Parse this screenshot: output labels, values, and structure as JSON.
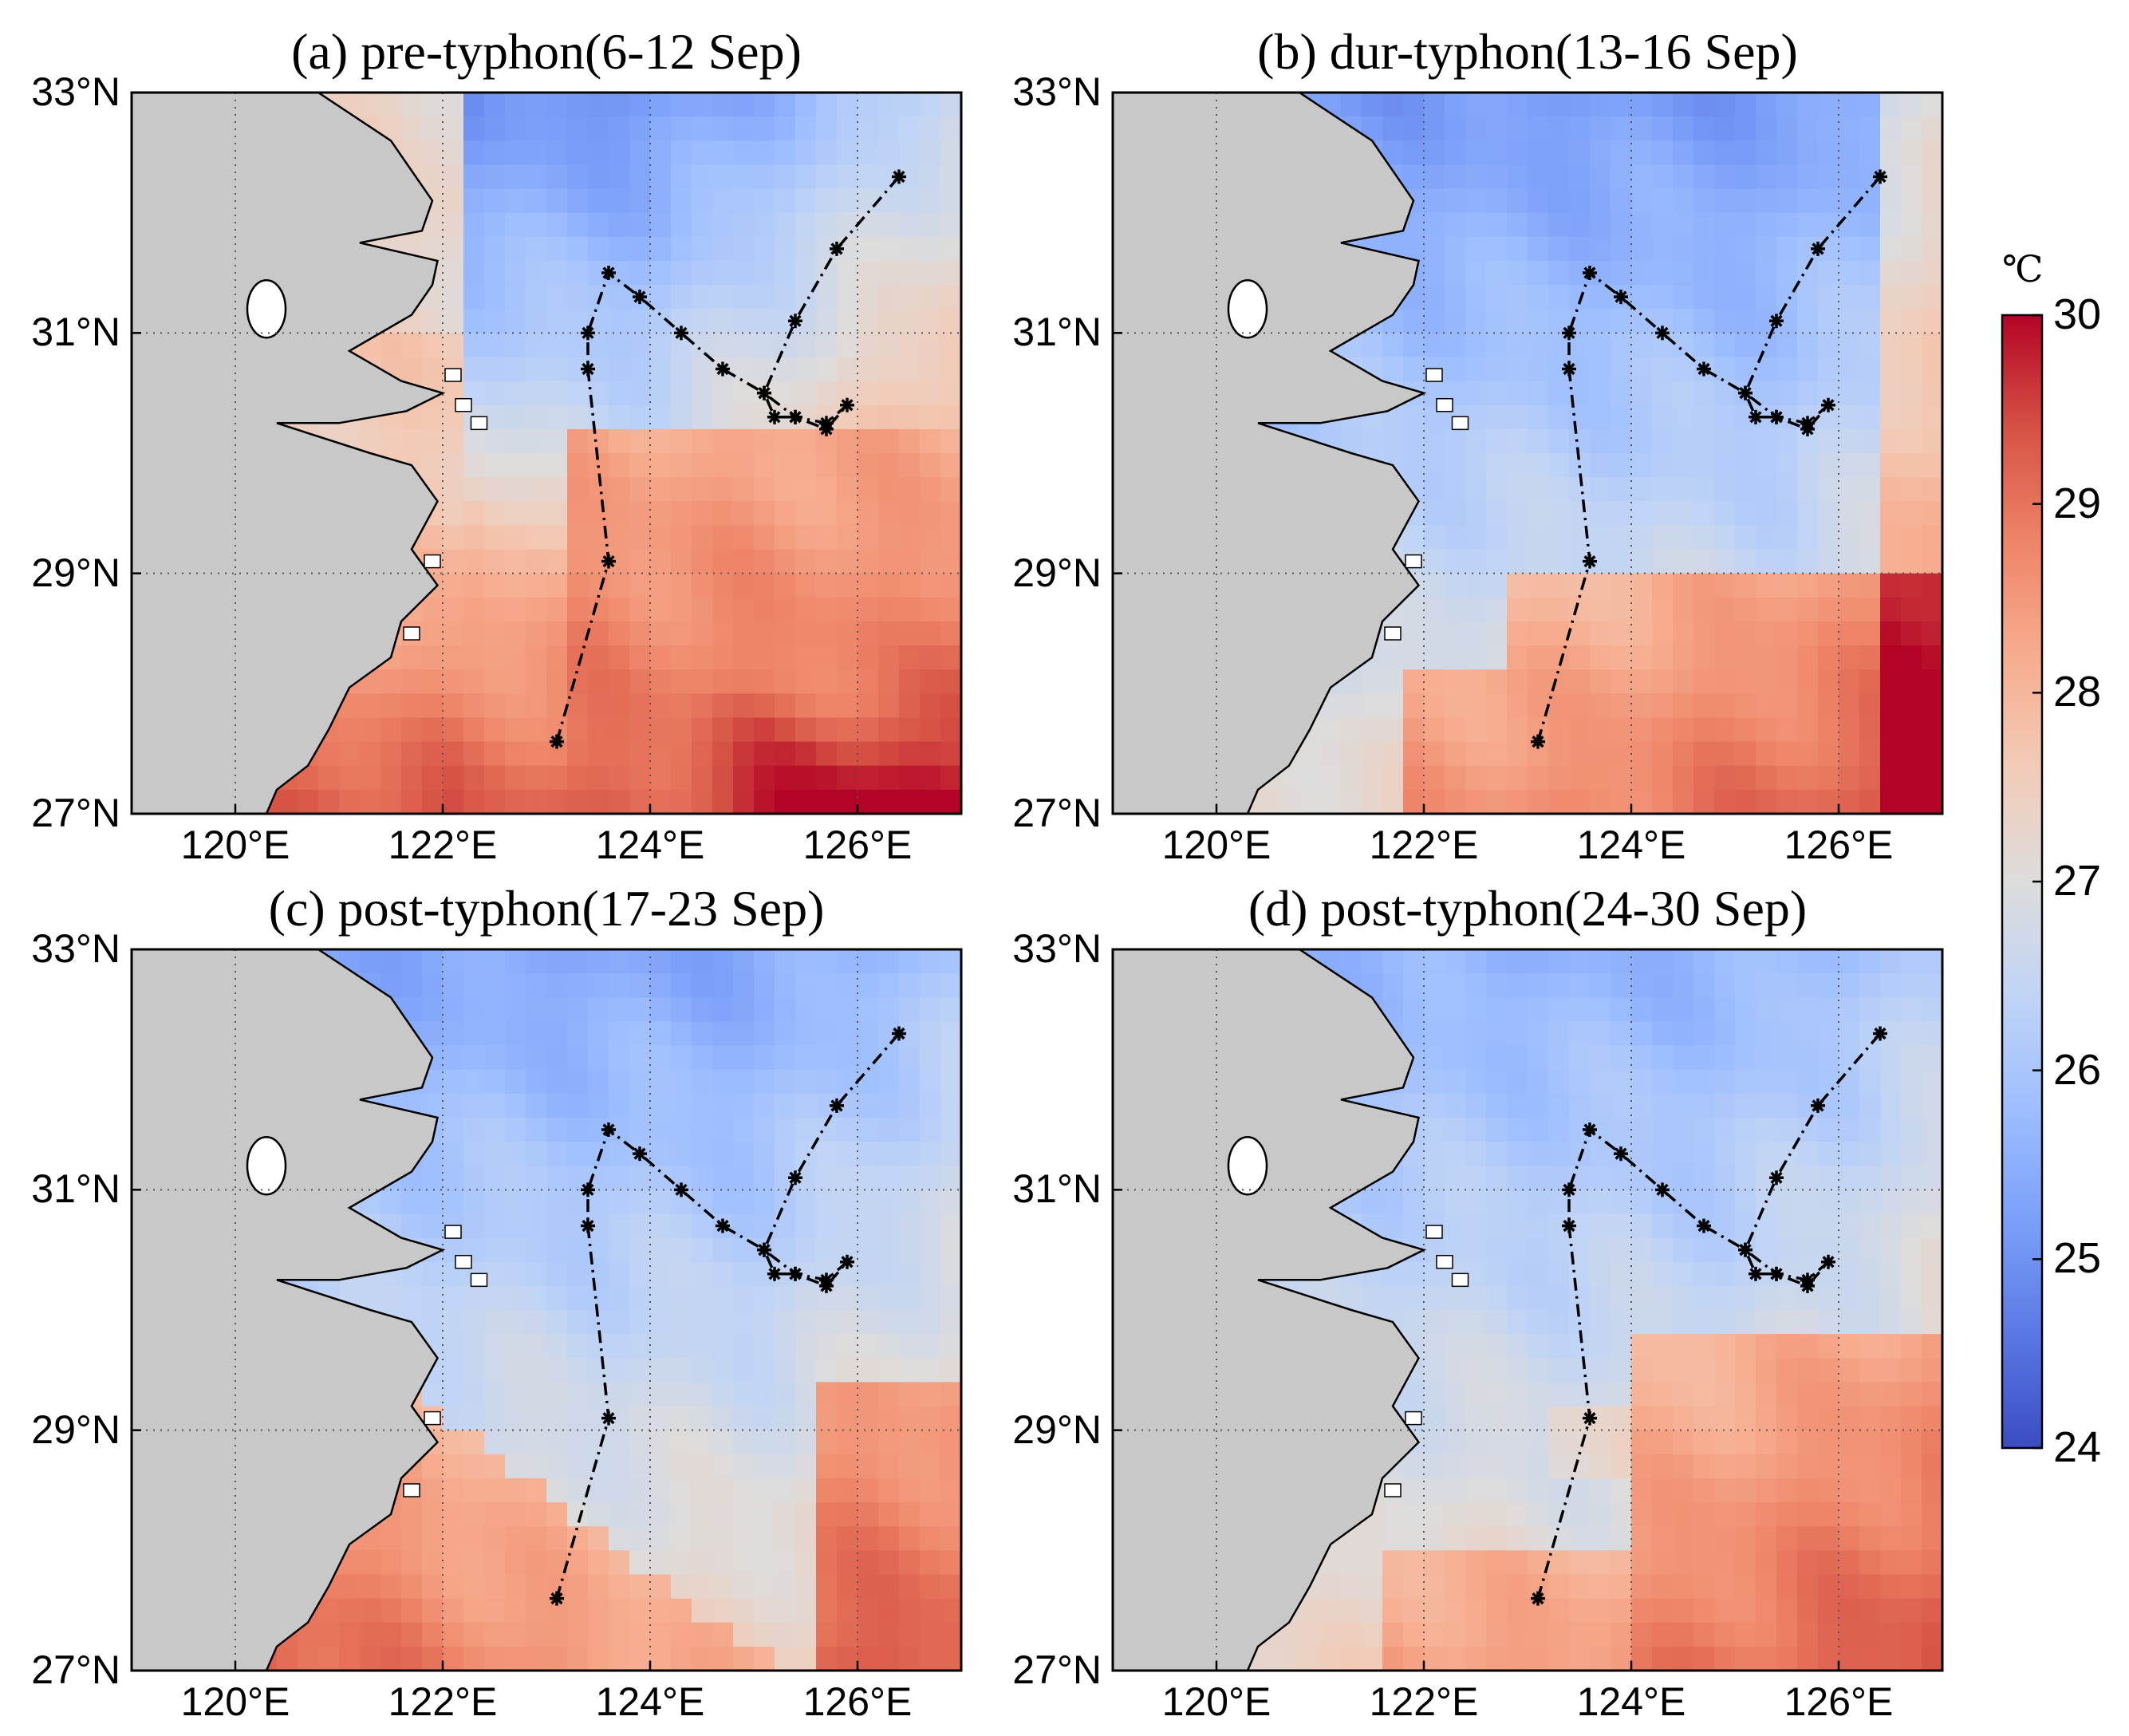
{
  "colors": {
    "land": "#c8c8c8",
    "frame": "#000000",
    "track": "#000000",
    "grid": "#555555",
    "colormap": [
      "#3b4cc0",
      "#5a78e4",
      "#7b9ff9",
      "#9ebeff",
      "#c0d4f5",
      "#dddcdc",
      "#f2cbb7",
      "#f7ac8e",
      "#ee8468",
      "#d65244",
      "#b40426"
    ]
  },
  "chart_data": [
    {
      "type": "heatmap",
      "panel_id": "a",
      "title": "(a) pre-typhon(6-12 Sep)",
      "xlim": [
        119,
        127
      ],
      "ylim": [
        27,
        33
      ],
      "xticks": [
        120,
        122,
        124,
        126
      ],
      "yticks": [
        27,
        29,
        31,
        33
      ],
      "xticklabels": [
        "120°E",
        "122°E",
        "124°E",
        "126°E"
      ],
      "yticklabels": [
        "27°N",
        "29°N",
        "31°N",
        "33°N"
      ],
      "grid": true,
      "track": [
        [
          123.1,
          27.6
        ],
        [
          123.6,
          29.1
        ],
        [
          123.4,
          30.7
        ],
        [
          123.4,
          31.0
        ],
        [
          123.6,
          31.5
        ],
        [
          123.9,
          31.3
        ],
        [
          124.3,
          31.0
        ],
        [
          124.7,
          30.7
        ],
        [
          125.1,
          30.5
        ],
        [
          125.2,
          30.3
        ],
        [
          125.4,
          30.3
        ],
        [
          125.7,
          30.2
        ],
        [
          125.9,
          30.4
        ],
        [
          125.7,
          30.25
        ],
        [
          125.4,
          30.3
        ],
        [
          125.1,
          30.5
        ],
        [
          125.4,
          31.1
        ],
        [
          125.8,
          31.7
        ],
        [
          126.4,
          32.3
        ]
      ]
    },
    {
      "type": "heatmap",
      "panel_id": "b",
      "title": "(b) dur-typhon(13-16 Sep)",
      "xlim": [
        119,
        127
      ],
      "ylim": [
        27,
        33
      ],
      "xticks": [
        120,
        122,
        124,
        126
      ],
      "yticks": [
        27,
        29,
        31,
        33
      ],
      "xticklabels": [
        "120°E",
        "122°E",
        "124°E",
        "126°E"
      ],
      "yticklabels": [
        "27°N",
        "29°N",
        "31°N",
        "33°N"
      ],
      "grid": true,
      "track": [
        [
          123.1,
          27.6
        ],
        [
          123.6,
          29.1
        ],
        [
          123.4,
          30.7
        ],
        [
          123.4,
          31.0
        ],
        [
          123.6,
          31.5
        ],
        [
          123.9,
          31.3
        ],
        [
          124.3,
          31.0
        ],
        [
          124.7,
          30.7
        ],
        [
          125.1,
          30.5
        ],
        [
          125.2,
          30.3
        ],
        [
          125.4,
          30.3
        ],
        [
          125.7,
          30.2
        ],
        [
          125.9,
          30.4
        ],
        [
          125.7,
          30.25
        ],
        [
          125.4,
          30.3
        ],
        [
          125.1,
          30.5
        ],
        [
          125.4,
          31.1
        ],
        [
          125.8,
          31.7
        ],
        [
          126.4,
          32.3
        ]
      ]
    },
    {
      "type": "heatmap",
      "panel_id": "c",
      "title": "(c) post-typhon(17-23 Sep)",
      "xlim": [
        119,
        127
      ],
      "ylim": [
        27,
        33
      ],
      "xticks": [
        120,
        122,
        124,
        126
      ],
      "yticks": [
        27,
        29,
        31,
        33
      ],
      "xticklabels": [
        "120°E",
        "122°E",
        "124°E",
        "126°E"
      ],
      "yticklabels": [
        "27°N",
        "29°N",
        "31°N",
        "33°N"
      ],
      "grid": true,
      "track": [
        [
          123.1,
          27.6
        ],
        [
          123.6,
          29.1
        ],
        [
          123.4,
          30.7
        ],
        [
          123.4,
          31.0
        ],
        [
          123.6,
          31.5
        ],
        [
          123.9,
          31.3
        ],
        [
          124.3,
          31.0
        ],
        [
          124.7,
          30.7
        ],
        [
          125.1,
          30.5
        ],
        [
          125.2,
          30.3
        ],
        [
          125.4,
          30.3
        ],
        [
          125.7,
          30.2
        ],
        [
          125.9,
          30.4
        ],
        [
          125.7,
          30.25
        ],
        [
          125.4,
          30.3
        ],
        [
          125.1,
          30.5
        ],
        [
          125.4,
          31.1
        ],
        [
          125.8,
          31.7
        ],
        [
          126.4,
          32.3
        ]
      ]
    },
    {
      "type": "heatmap",
      "panel_id": "d",
      "title": "(d) post-typhon(24-30 Sep)",
      "xlim": [
        119,
        127
      ],
      "ylim": [
        27,
        33
      ],
      "xticks": [
        120,
        122,
        124,
        126
      ],
      "yticks": [
        27,
        29,
        31,
        33
      ],
      "xticklabels": [
        "120°E",
        "122°E",
        "124°E",
        "126°E"
      ],
      "yticklabels": [
        "27°N",
        "29°N",
        "31°N",
        "33°N"
      ],
      "grid": true,
      "track": [
        [
          123.1,
          27.6
        ],
        [
          123.6,
          29.1
        ],
        [
          123.4,
          30.7
        ],
        [
          123.4,
          31.0
        ],
        [
          123.6,
          31.5
        ],
        [
          123.9,
          31.3
        ],
        [
          124.3,
          31.0
        ],
        [
          124.7,
          30.7
        ],
        [
          125.1,
          30.5
        ],
        [
          125.2,
          30.3
        ],
        [
          125.4,
          30.3
        ],
        [
          125.7,
          30.2
        ],
        [
          125.9,
          30.4
        ],
        [
          125.7,
          30.25
        ],
        [
          125.4,
          30.3
        ],
        [
          125.1,
          30.5
        ],
        [
          125.4,
          31.1
        ],
        [
          125.8,
          31.7
        ],
        [
          126.4,
          32.3
        ]
      ]
    }
  ],
  "colorbar": {
    "unit": "℃",
    "min": 24,
    "max": 30,
    "ticks": [
      24,
      25,
      26,
      27,
      28,
      29,
      30
    ],
    "ticklabels": [
      "24",
      "25",
      "26",
      "27",
      "28",
      "29",
      "30"
    ]
  }
}
